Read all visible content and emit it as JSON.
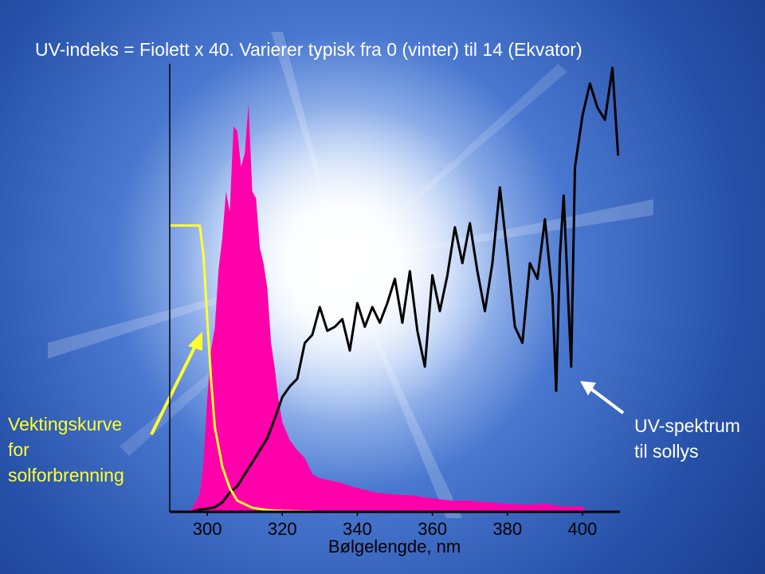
{
  "chart_data": {
    "type": "line",
    "title": "UV-indeks = Fiolett x 40. Varierer typisk fra 0 (vinter) til 14 (Ekvator)",
    "x_label": "Bølgelengde, nm",
    "xlim": [
      290,
      410
    ],
    "xticks": [
      300,
      320,
      340,
      360,
      380,
      400
    ],
    "ylim": [
      0,
      100
    ],
    "annotations": [
      {
        "lines": [
          "Vektingskurve",
          "for",
          "solforbrenning"
        ],
        "color": "#ffff33"
      },
      {
        "lines": [
          "UV-spektrum",
          "til sollys"
        ],
        "color": "#ffffff"
      }
    ],
    "series": [
      {
        "kind": "area",
        "color": "#ff00aa",
        "x": [
          294,
          296,
          298,
          299,
          300,
          301,
          302,
          303,
          304,
          305,
          306,
          307,
          308,
          309,
          310,
          311,
          312,
          313,
          314,
          315,
          316,
          317,
          318,
          319,
          320,
          322,
          324,
          326,
          328,
          330,
          335,
          340,
          345,
          350,
          355,
          360,
          365,
          370,
          375,
          380,
          385,
          390,
          395,
          400,
          401
        ],
        "values": [
          0,
          0.7,
          3.9,
          11,
          25.3,
          36,
          41,
          54,
          61,
          71.5,
          67,
          86,
          85,
          77,
          80,
          91,
          71.5,
          70,
          59,
          55.5,
          50,
          37.7,
          32,
          25,
          20,
          16,
          13.7,
          12,
          8.4,
          7.5,
          6.6,
          5.3,
          4.3,
          3.9,
          3.6,
          3,
          2.5,
          2.5,
          2.1,
          1.8,
          1.6,
          1.8,
          1.2,
          1.2,
          0
        ]
      },
      {
        "kind": "line",
        "color": "#000000",
        "x": [
          296,
          298,
          300,
          302,
          304,
          306,
          308,
          310,
          312,
          314,
          316,
          318,
          320,
          322,
          324,
          326,
          328,
          330,
          332,
          334,
          336,
          338,
          340,
          342,
          344,
          346,
          348,
          350,
          352,
          354,
          356,
          358,
          360,
          362,
          364,
          366,
          368,
          370,
          372,
          374,
          376,
          378,
          380,
          382,
          384,
          386,
          388,
          390,
          392,
          393,
          394,
          395,
          397,
          398,
          400,
          402,
          404,
          406,
          408,
          409.5
        ],
        "values": [
          0,
          0.5,
          0.7,
          1,
          2.1,
          4.3,
          5.7,
          8.4,
          11,
          13.7,
          16.4,
          20.8,
          25.6,
          28,
          29.7,
          37.7,
          39.5,
          45.7,
          40.4,
          41.3,
          43,
          36,
          46.6,
          41.3,
          45.7,
          42.2,
          46.6,
          52,
          42.2,
          53.7,
          40.4,
          32.4,
          52.8,
          44.8,
          52.8,
          63.5,
          55.5,
          64.4,
          53.7,
          44.8,
          55.5,
          72.4,
          57.3,
          41.3,
          37.7,
          55.5,
          52,
          65.3,
          48.4,
          27,
          57.3,
          70.6,
          32.4,
          76.9,
          88.4,
          95.6,
          90.2,
          87.5,
          99.1,
          79.5
        ]
      },
      {
        "kind": "line",
        "color": "#ffff33",
        "x": [
          290,
          298,
          299,
          300,
          301,
          302,
          304,
          306,
          308,
          312,
          316,
          320,
          330
        ],
        "values": [
          63.9,
          63.9,
          57.3,
          43.1,
          29.7,
          19,
          10.1,
          5.3,
          2.5,
          0.9,
          0.4,
          0.2,
          0
        ]
      }
    ]
  }
}
